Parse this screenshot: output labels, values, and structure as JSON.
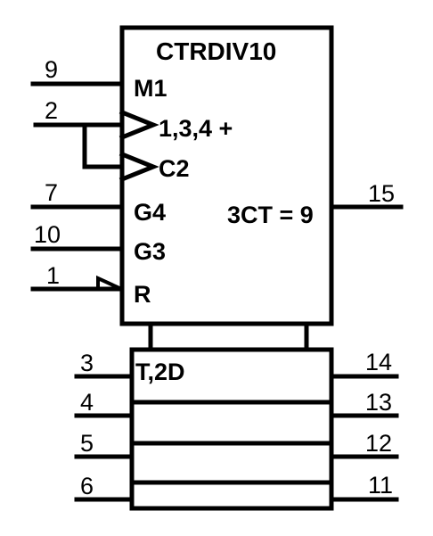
{
  "block": {
    "title": "CTRDIV10",
    "output_function": "3CT = 9"
  },
  "control_block": {
    "inputs": [
      {
        "id": "m1",
        "pin": "9",
        "label": "M1"
      },
      {
        "id": "clock-1",
        "pin": "2",
        "label": "1,3,4 +"
      },
      {
        "id": "clock-2",
        "label": "C2"
      },
      {
        "id": "g4",
        "pin": "7",
        "label": "G4"
      },
      {
        "id": "g3",
        "pin": "10",
        "label": "G3"
      },
      {
        "id": "reset",
        "pin": "1",
        "label": "R"
      }
    ],
    "output": {
      "pin": "15"
    }
  },
  "register_block": {
    "label": "T,2D",
    "stages": [
      {
        "in_pin": "3",
        "out_pin": "14"
      },
      {
        "in_pin": "4",
        "out_pin": "13"
      },
      {
        "in_pin": "5",
        "out_pin": "12"
      },
      {
        "in_pin": "6",
        "out_pin": "11"
      }
    ]
  }
}
